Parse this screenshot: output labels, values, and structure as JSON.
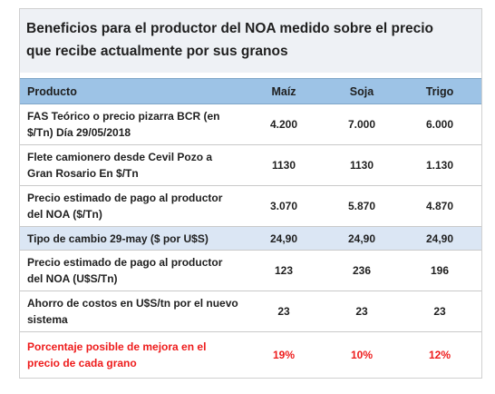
{
  "title": {
    "line1": "Beneficios para el productor del NOA medido sobre el precio",
    "line2": "que recibe actualmente por sus granos"
  },
  "table": {
    "headers": [
      "Producto",
      "Maíz",
      "Soja",
      "Trigo"
    ],
    "rows": [
      {
        "label": "FAS Teórico o precio pizarra BCR (en $/Tn) Día 29/05/2018",
        "maiz": "4.200",
        "soja": "7.000",
        "trigo": "6.000"
      },
      {
        "label": "Flete camionero desde Cevil Pozo  a Gran Rosario En $/Tn",
        "maiz": "1130",
        "soja": "1130",
        "trigo": "1.130"
      },
      {
        "label": "Precio estimado de pago al productor del NOA ($/Tn)",
        "maiz": "3.070",
        "soja": "5.870",
        "trigo": "4.870"
      },
      {
        "label": "Tipo de cambio 29-may ($ por U$S)",
        "maiz": "24,90",
        "soja": "24,90",
        "trigo": "24,90"
      },
      {
        "label": "Precio estimado de pago al productor del NOA (U$S/Tn)",
        "maiz": "123",
        "soja": "236",
        "trigo": "196"
      },
      {
        "label": "Ahorro de costos en U$S/tn por el nuevo sistema",
        "maiz": "23",
        "soja": "23",
        "trigo": "23"
      },
      {
        "label": "Porcentaje posible de mejora en el precio de cada grano",
        "maiz": "19%",
        "soja": "10%",
        "trigo": "12%"
      }
    ]
  },
  "colors": {
    "header_bg": "#9dc3e6",
    "row_shade": "#dbe6f4",
    "highlight_text": "#ee1c1c"
  }
}
